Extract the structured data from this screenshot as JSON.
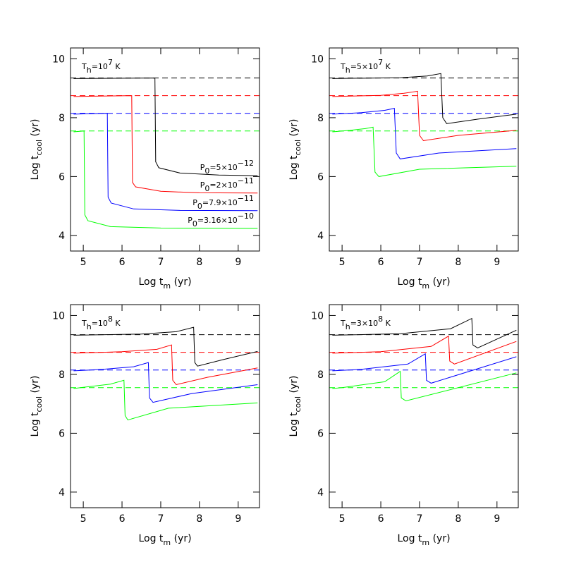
{
  "chart_data": [
    {
      "type": "line",
      "title": [
        {
          "t": "T"
        },
        {
          "t": "h",
          "pos": "sub"
        },
        {
          "t": "=10"
        },
        {
          "t": "7",
          "pos": "sup"
        },
        {
          "t": " K"
        }
      ],
      "xlabel": [
        {
          "t": "Log  t"
        },
        {
          "t": "m",
          "pos": "sub"
        },
        {
          "t": "  (yr)"
        }
      ],
      "ylabel": [
        {
          "t": "Log  t"
        },
        {
          "t": "cool",
          "pos": "sub"
        },
        {
          "t": "  (yr)"
        }
      ],
      "xlim": [
        4.67,
        9.55
      ],
      "ylim": [
        3.47,
        10.37
      ],
      "xticks": [
        5,
        6,
        7,
        8,
        9
      ],
      "yticks": [
        4,
        6,
        8,
        10
      ],
      "series": [
        {
          "color": "#000000",
          "dash": true,
          "x": [
            4.67,
            9.55
          ],
          "values": [
            9.35,
            9.35
          ]
        },
        {
          "color": "#ff0000",
          "dash": true,
          "x": [
            4.67,
            9.55
          ],
          "values": [
            8.75,
            8.75
          ]
        },
        {
          "color": "#0000ff",
          "dash": true,
          "x": [
            4.67,
            9.55
          ],
          "values": [
            8.15,
            8.15
          ]
        },
        {
          "color": "#00ff00",
          "dash": true,
          "x": [
            4.67,
            9.55
          ],
          "values": [
            7.55,
            7.55
          ]
        },
        {
          "color": "#000000",
          "x": [
            4.75,
            6.85,
            6.87,
            6.95,
            7.5,
            8.5,
            9.5
          ],
          "values": [
            9.33,
            9.35,
            6.5,
            6.3,
            6.12,
            6.05,
            6.03
          ]
        },
        {
          "color": "#ff0000",
          "x": [
            4.75,
            6.25,
            6.27,
            6.35,
            7,
            8,
            9.5
          ],
          "values": [
            8.72,
            8.75,
            5.8,
            5.65,
            5.5,
            5.45,
            5.44
          ]
        },
        {
          "color": "#0000ff",
          "x": [
            4.75,
            5.62,
            5.64,
            5.72,
            6.3,
            7.5,
            9.5
          ],
          "values": [
            8.12,
            8.15,
            5.3,
            5.1,
            4.9,
            4.85,
            4.84
          ]
        },
        {
          "color": "#00ff00",
          "x": [
            4.75,
            5.02,
            5.04,
            5.12,
            5.7,
            7,
            9.5
          ],
          "values": [
            7.52,
            7.55,
            4.7,
            4.5,
            4.3,
            4.25,
            4.24
          ]
        }
      ],
      "annotations": [
        [
          {
            "t": "P"
          },
          {
            "t": "0",
            "pos": "sub"
          },
          {
            "t": "=5×10"
          },
          {
            "t": "−12",
            "pos": "sup"
          }
        ],
        [
          {
            "t": "P"
          },
          {
            "t": "0",
            "pos": "sub"
          },
          {
            "t": "=2×10"
          },
          {
            "t": "−11",
            "pos": "sup"
          }
        ],
        [
          {
            "t": "P"
          },
          {
            "t": "0",
            "pos": "sub"
          },
          {
            "t": "=7.9×10"
          },
          {
            "t": "−11",
            "pos": "sup"
          }
        ],
        [
          {
            "t": "P"
          },
          {
            "t": "0",
            "pos": "sub"
          },
          {
            "t": "=3.16×10"
          },
          {
            "t": "−10",
            "pos": "sup"
          }
        ]
      ]
    },
    {
      "type": "line",
      "title": [
        {
          "t": "T"
        },
        {
          "t": "h",
          "pos": "sub"
        },
        {
          "t": "=5×10"
        },
        {
          "t": "7",
          "pos": "sup"
        },
        {
          "t": " K"
        }
      ],
      "xlabel": [
        {
          "t": "Log  t"
        },
        {
          "t": "m",
          "pos": "sub"
        },
        {
          "t": "  (yr)"
        }
      ],
      "ylabel": [
        {
          "t": "Log  t"
        },
        {
          "t": "cool",
          "pos": "sub"
        },
        {
          "t": "  (yr)"
        }
      ],
      "xlim": [
        4.67,
        9.55
      ],
      "ylim": [
        3.47,
        10.37
      ],
      "xticks": [
        5,
        6,
        7,
        8,
        9
      ],
      "yticks": [
        4,
        6,
        8,
        10
      ],
      "series": [
        {
          "color": "#000000",
          "dash": true,
          "x": [
            4.67,
            9.55
          ],
          "values": [
            9.35,
            9.35
          ]
        },
        {
          "color": "#ff0000",
          "dash": true,
          "x": [
            4.67,
            9.55
          ],
          "values": [
            8.75,
            8.75
          ]
        },
        {
          "color": "#0000ff",
          "dash": true,
          "x": [
            4.67,
            9.55
          ],
          "values": [
            8.15,
            8.15
          ]
        },
        {
          "color": "#00ff00",
          "dash": true,
          "x": [
            4.67,
            9.55
          ],
          "values": [
            7.55,
            7.55
          ]
        },
        {
          "color": "#000000",
          "x": [
            4.75,
            6.5,
            7.2,
            7.55,
            7.6,
            7.7,
            8.5,
            9.5
          ],
          "values": [
            9.33,
            9.36,
            9.42,
            9.5,
            8.0,
            7.8,
            7.95,
            8.12
          ]
        },
        {
          "color": "#ff0000",
          "x": [
            4.75,
            6,
            6.6,
            6.95,
            7.0,
            7.1,
            8,
            9.5
          ],
          "values": [
            8.72,
            8.76,
            8.83,
            8.9,
            7.4,
            7.22,
            7.4,
            7.57
          ]
        },
        {
          "color": "#0000ff",
          "x": [
            4.75,
            5.5,
            6.1,
            6.35,
            6.4,
            6.5,
            7.5,
            9.5
          ],
          "values": [
            8.12,
            8.17,
            8.25,
            8.32,
            6.8,
            6.6,
            6.8,
            6.95
          ]
        },
        {
          "color": "#00ff00",
          "x": [
            4.75,
            5.2,
            5.6,
            5.8,
            5.85,
            5.95,
            7,
            9.5
          ],
          "values": [
            7.52,
            7.57,
            7.63,
            7.68,
            6.15,
            6.0,
            6.25,
            6.35
          ]
        }
      ]
    },
    {
      "type": "line",
      "title": [
        {
          "t": "T"
        },
        {
          "t": "h",
          "pos": "sub"
        },
        {
          "t": "=10"
        },
        {
          "t": "8",
          "pos": "sup"
        },
        {
          "t": " K"
        }
      ],
      "xlabel": [
        {
          "t": "Log  t"
        },
        {
          "t": "m",
          "pos": "sub"
        },
        {
          "t": "  (yr)"
        }
      ],
      "ylabel": [
        {
          "t": "Log  t"
        },
        {
          "t": "cool",
          "pos": "sub"
        },
        {
          "t": "  (yr)"
        }
      ],
      "xlim": [
        4.67,
        9.55
      ],
      "ylim": [
        3.47,
        10.37
      ],
      "xticks": [
        5,
        6,
        7,
        8,
        9
      ],
      "yticks": [
        4,
        6,
        8,
        10
      ],
      "series": [
        {
          "color": "#000000",
          "dash": true,
          "x": [
            4.67,
            9.55
          ],
          "values": [
            9.35,
            9.35
          ]
        },
        {
          "color": "#ff0000",
          "dash": true,
          "x": [
            4.67,
            9.55
          ],
          "values": [
            8.75,
            8.75
          ]
        },
        {
          "color": "#0000ff",
          "dash": true,
          "x": [
            4.67,
            9.55
          ],
          "values": [
            8.15,
            8.15
          ]
        },
        {
          "color": "#00ff00",
          "dash": true,
          "x": [
            4.67,
            9.55
          ],
          "values": [
            7.55,
            7.55
          ]
        },
        {
          "color": "#000000",
          "x": [
            4.75,
            6.5,
            7.4,
            7.85,
            7.88,
            7.95,
            8.6,
            9.5
          ],
          "values": [
            9.33,
            9.37,
            9.45,
            9.6,
            8.4,
            8.28,
            8.5,
            8.78
          ]
        },
        {
          "color": "#ff0000",
          "x": [
            4.75,
            6,
            6.9,
            7.28,
            7.31,
            7.4,
            8.2,
            9.5
          ],
          "values": [
            8.72,
            8.77,
            8.85,
            9.0,
            7.8,
            7.65,
            7.9,
            8.22
          ]
        },
        {
          "color": "#0000ff",
          "x": [
            4.75,
            5.5,
            6.3,
            6.68,
            6.71,
            6.8,
            7.8,
            9.5
          ],
          "values": [
            8.12,
            8.17,
            8.26,
            8.4,
            7.2,
            7.05,
            7.35,
            7.65
          ]
        },
        {
          "color": "#00ff00",
          "x": [
            4.75,
            5,
            5.7,
            6.05,
            6.08,
            6.15,
            7.2,
            9.5
          ],
          "values": [
            7.52,
            7.56,
            7.67,
            7.8,
            6.6,
            6.45,
            6.85,
            7.03
          ]
        }
      ]
    },
    {
      "type": "line",
      "title": [
        {
          "t": "T"
        },
        {
          "t": "h",
          "pos": "sub"
        },
        {
          "t": "=3×10"
        },
        {
          "t": "8",
          "pos": "sup"
        },
        {
          "t": " K"
        }
      ],
      "xlabel": [
        {
          "t": "Log  t"
        },
        {
          "t": "m",
          "pos": "sub"
        },
        {
          "t": "  (yr)"
        }
      ],
      "ylabel": [
        {
          "t": "Log  t"
        },
        {
          "t": "cool",
          "pos": "sub"
        },
        {
          "t": "  (yr)"
        }
      ],
      "xlim": [
        4.67,
        9.55
      ],
      "ylim": [
        3.47,
        10.37
      ],
      "xticks": [
        5,
        6,
        7,
        8,
        9
      ],
      "yticks": [
        4,
        6,
        8,
        10
      ],
      "series": [
        {
          "color": "#000000",
          "dash": true,
          "x": [
            4.67,
            9.55
          ],
          "values": [
            9.35,
            9.35
          ]
        },
        {
          "color": "#ff0000",
          "dash": true,
          "x": [
            4.67,
            9.55
          ],
          "values": [
            8.75,
            8.75
          ]
        },
        {
          "color": "#0000ff",
          "dash": true,
          "x": [
            4.67,
            9.55
          ],
          "values": [
            8.15,
            8.15
          ]
        },
        {
          "color": "#00ff00",
          "dash": true,
          "x": [
            4.67,
            9.55
          ],
          "values": [
            7.55,
            7.55
          ]
        },
        {
          "color": "#000000",
          "x": [
            4.75,
            6.5,
            7.8,
            8.35,
            8.38,
            8.5,
            9.5
          ],
          "values": [
            9.33,
            9.38,
            9.55,
            9.9,
            9.0,
            8.9,
            9.5
          ]
        },
        {
          "color": "#ff0000",
          "x": [
            4.75,
            6,
            7.3,
            7.75,
            7.78,
            7.9,
            9.5
          ],
          "values": [
            8.72,
            8.77,
            8.95,
            9.3,
            8.45,
            8.35,
            9.12
          ]
        },
        {
          "color": "#0000ff",
          "x": [
            4.75,
            5.5,
            6.7,
            7.15,
            7.18,
            7.3,
            9.5
          ],
          "values": [
            8.12,
            8.17,
            8.35,
            8.7,
            7.8,
            7.7,
            8.6
          ]
        },
        {
          "color": "#00ff00",
          "x": [
            4.75,
            5,
            6.1,
            6.5,
            6.53,
            6.65,
            9.5
          ],
          "values": [
            7.52,
            7.55,
            7.75,
            8.1,
            7.2,
            7.1,
            8.05
          ]
        }
      ]
    }
  ]
}
